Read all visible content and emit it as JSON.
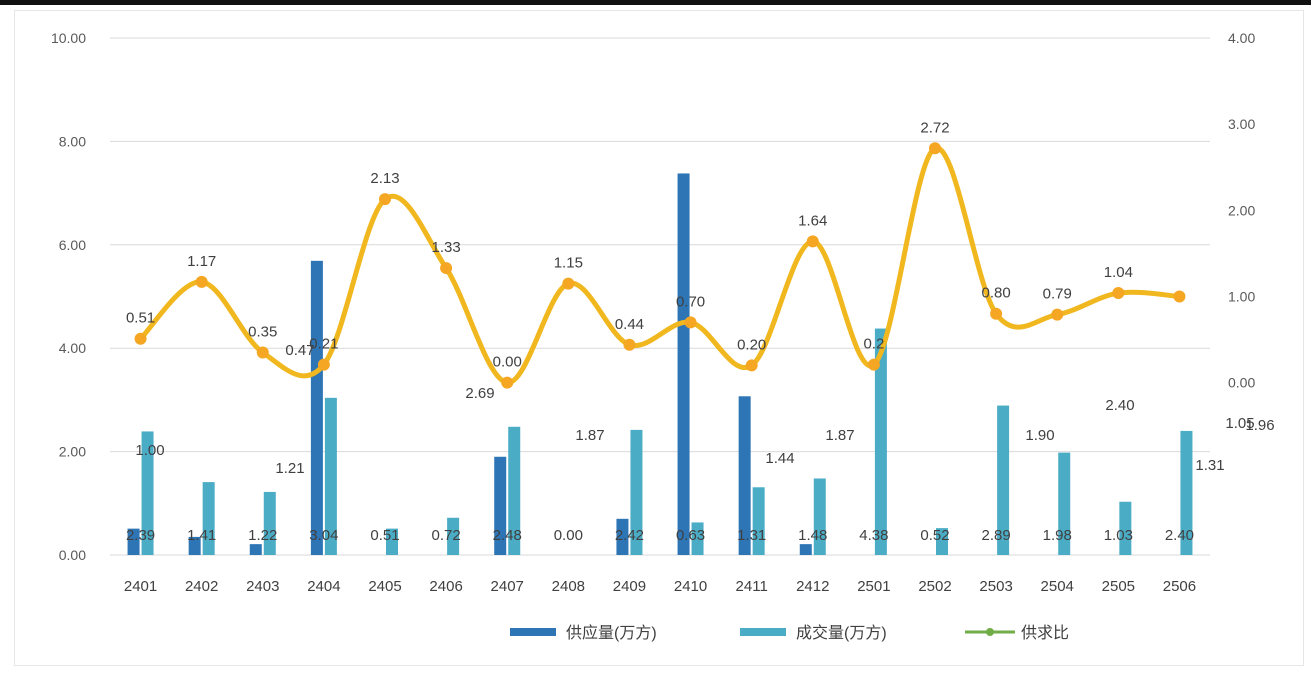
{
  "colors": {
    "supply": "#2e75b6",
    "deal": "#4bacc6",
    "ratio": "#f0b71f",
    "ratio_marker": "#f5a623",
    "grid": "#d9d9d9",
    "text": "#404040"
  },
  "chart_data": {
    "type": "bar",
    "title": "",
    "categories": [
      "2401",
      "2402",
      "2403",
      "2404",
      "2405",
      "2406",
      "2407",
      "2408",
      "2409",
      "2410",
      "2411",
      "2412",
      "2501",
      "2502",
      "2503",
      "2504",
      "2505",
      "2506"
    ],
    "left_axis": {
      "ticks": [
        "10.00",
        "8.00",
        "6.00",
        "4.00",
        "2.00",
        "0.00"
      ],
      "ylim": [
        0,
        10
      ]
    },
    "right_axis": {
      "ticks": [
        "4.00",
        "3.00",
        "2.00",
        "1.00",
        "0.00"
      ],
      "ylim": [
        -2,
        4
      ]
    },
    "series": [
      {
        "name": "供应量(万方)",
        "axis": "left",
        "type": "bar",
        "values": [
          0.51,
          0.35,
          0.21,
          5.69,
          0.0,
          0.0,
          1.9,
          0.0,
          0.7,
          7.38,
          3.07,
          0.21,
          0.0,
          0.0,
          0.0,
          0.0,
          0.0,
          0.0
        ]
      },
      {
        "name": "成交量(万方)",
        "axis": "left",
        "type": "bar",
        "values": [
          2.39,
          1.41,
          1.22,
          3.04,
          0.51,
          0.72,
          2.48,
          0.0,
          2.42,
          0.63,
          1.31,
          1.48,
          4.38,
          0.52,
          2.89,
          1.98,
          1.03,
          2.4
        ]
      },
      {
        "name": "供求比",
        "axis": "right",
        "type": "line",
        "values": [
          0.51,
          1.17,
          0.35,
          0.21,
          2.13,
          1.33,
          0.0,
          1.15,
          0.44,
          0.7,
          0.2,
          1.64,
          0.21,
          2.72,
          0.8,
          0.79,
          1.04,
          1.0
        ],
        "labels": [
          "0.51",
          "1.17",
          "0.35",
          "0.21",
          "2.13",
          "1.33",
          "0.00",
          "1.15",
          "0.44",
          "0.70",
          "0.20",
          "1.64",
          "0.2",
          "2.72",
          "0.80",
          "0.79",
          "1.04",
          ""
        ]
      }
    ],
    "extra_labels": [
      "0.47",
      "2.69",
      "1.87",
      "1.44",
      "1.87",
      "1.90",
      "1.31",
      "2.40",
      "1.96",
      "1.21",
      "1.00",
      "1.05"
    ],
    "legend": {
      "placement": "bottom",
      "items": [
        {
          "label": "供应量(万方)",
          "kind": "bar-supply"
        },
        {
          "label": "成交量(万方)",
          "kind": "bar-deal"
        },
        {
          "label": "供求比",
          "kind": "line"
        }
      ]
    },
    "grid": true
  }
}
